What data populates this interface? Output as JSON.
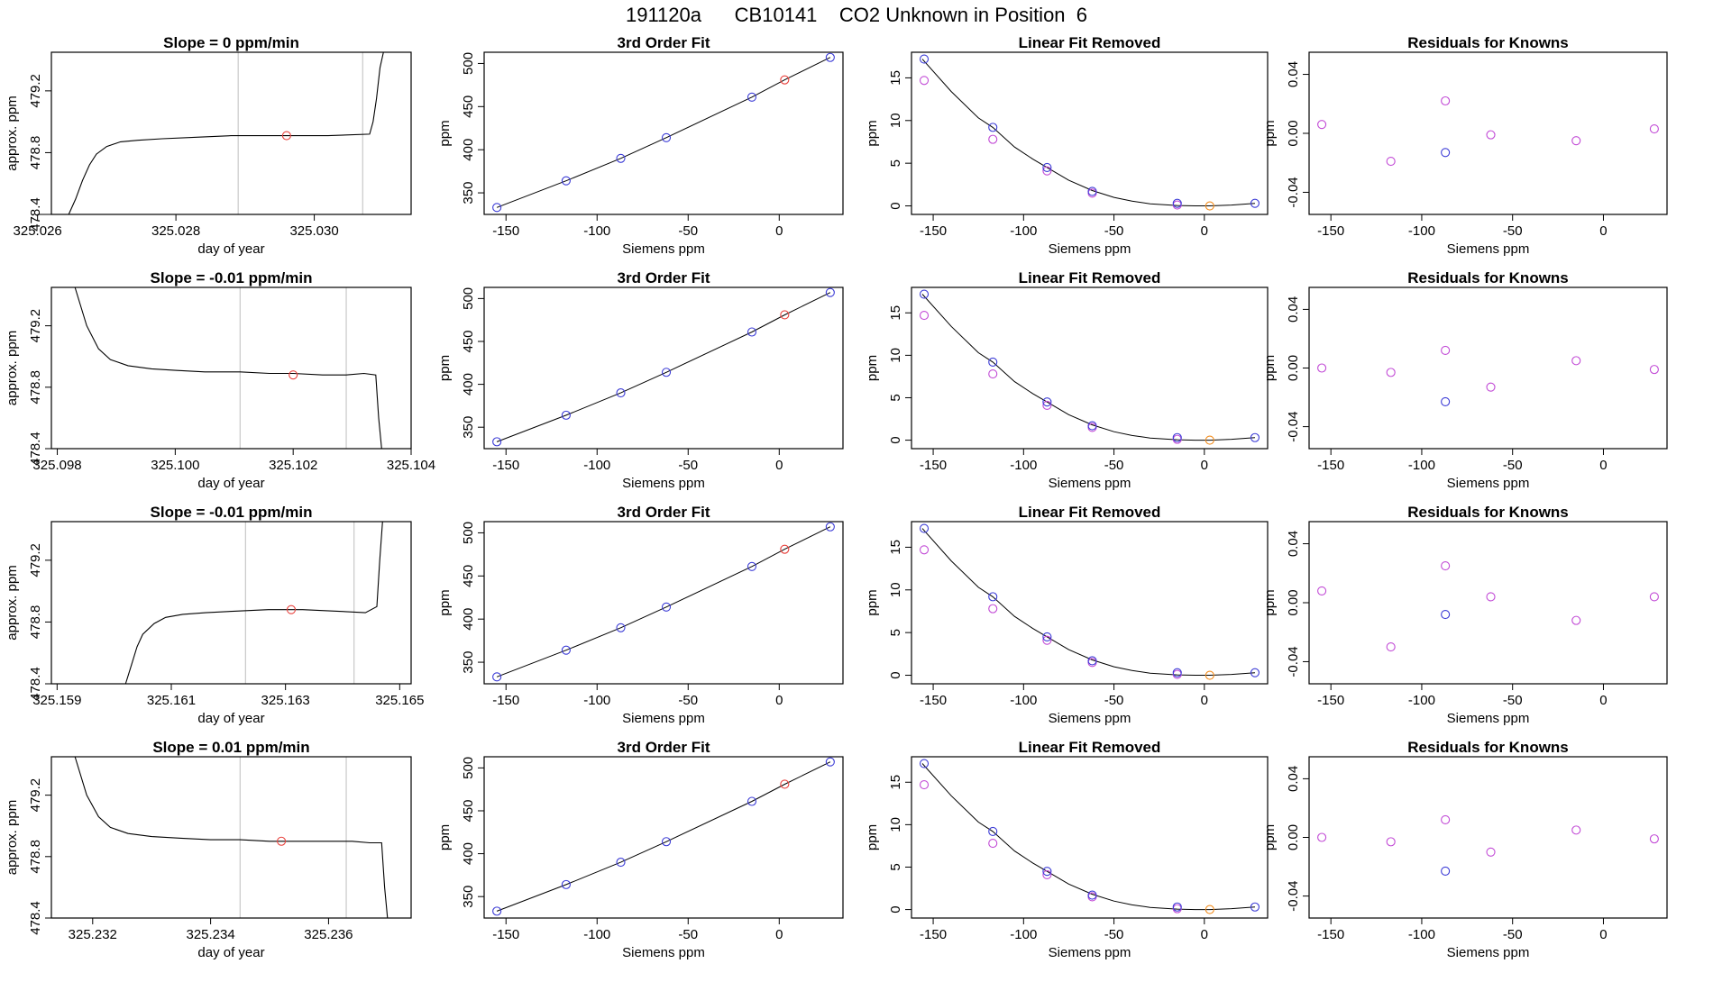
{
  "title": "191120a      CB10141    CO2 Unknown in Position  6",
  "chart_data": [
    {
      "type": "line",
      "row": 0,
      "panel": "time_series",
      "title": "Slope =  0  ppm/min",
      "xlabel": "day of year",
      "ylabel": "approx. ppm",
      "xlim": [
        325.0262,
        325.0314
      ],
      "ylim": [
        478.4,
        479.45
      ],
      "xticks": [
        325.026,
        325.028,
        325.03
      ],
      "xtick_labels": [
        "325.026",
        "325.028",
        "325.030"
      ],
      "yticks": [
        478.4,
        478.8,
        479.2
      ],
      "ytick_labels": [
        "478.4",
        "478.8",
        "479.2"
      ],
      "vlines": [
        325.0289,
        325.0307
      ],
      "marker": {
        "x": 325.0296,
        "y": 478.91,
        "color": "#e8413c"
      },
      "series": [
        {
          "name": "trace",
          "x": [
            325.02645,
            325.02655,
            325.02665,
            325.02675,
            325.02685,
            325.027,
            325.0272,
            325.02745,
            325.0278,
            325.0283,
            325.0288,
            325.0295,
            325.0302,
            325.0308,
            325.03085,
            325.0309,
            325.03095,
            325.031
          ],
          "values": [
            478.4,
            478.5,
            478.62,
            478.72,
            478.79,
            478.84,
            478.87,
            478.88,
            478.89,
            478.9,
            478.91,
            478.91,
            478.91,
            478.92,
            479.0,
            479.15,
            479.35,
            479.45
          ]
        }
      ]
    },
    {
      "type": "line",
      "row": 0,
      "panel": "third_order_fit",
      "title": "3rd Order Fit",
      "xlabel": "Siemens ppm",
      "ylabel": "ppm"
    },
    {
      "type": "line",
      "row": 0,
      "panel": "linear_fit_removed",
      "title": "Linear Fit Removed",
      "xlabel": "Siemens ppm",
      "ylabel": "ppm"
    },
    {
      "type": "scatter",
      "row": 0,
      "panel": "residuals",
      "title": "Residuals for Knowns",
      "xlabel": "Siemens ppm",
      "ylabel": "ppm",
      "magenta_values": [
        0.006,
        -0.019,
        0.022,
        -0.001,
        -0.005,
        0.003
      ],
      "blue_value": -0.013
    },
    {
      "type": "line",
      "row": 1,
      "panel": "time_series",
      "title": "Slope =  -0.01  ppm/min",
      "xlabel": "day of year",
      "ylabel": "approx. ppm",
      "xlim": [
        325.0979,
        325.104
      ],
      "ylim": [
        478.4,
        479.45
      ],
      "xticks": [
        325.098,
        325.1,
        325.102,
        325.104
      ],
      "xtick_labels": [
        "325.098",
        "325.100",
        "325.102",
        "325.104"
      ],
      "yticks": [
        478.4,
        478.8,
        479.2
      ],
      "ytick_labels": [
        "478.4",
        "478.8",
        "479.2"
      ],
      "vlines": [
        325.1011,
        325.1029
      ],
      "marker": {
        "x": 325.102,
        "y": 478.88,
        "color": "#e8413c"
      },
      "series": [
        {
          "name": "trace",
          "x": [
            325.0983,
            325.0985,
            325.0987,
            325.0989,
            325.0992,
            325.0996,
            325.1,
            325.1005,
            325.1011,
            325.1016,
            325.102,
            325.1025,
            325.1029,
            325.1032,
            325.1034,
            325.10345,
            325.1035
          ],
          "values": [
            479.45,
            479.2,
            479.05,
            478.98,
            478.94,
            478.92,
            478.91,
            478.9,
            478.9,
            478.89,
            478.89,
            478.88,
            478.88,
            478.89,
            478.88,
            478.6,
            478.4
          ]
        }
      ]
    },
    {
      "type": "line",
      "row": 1,
      "panel": "third_order_fit",
      "title": "3rd Order Fit",
      "xlabel": "Siemens ppm",
      "ylabel": "ppm"
    },
    {
      "type": "line",
      "row": 1,
      "panel": "linear_fit_removed",
      "title": "Linear Fit Removed",
      "xlabel": "Siemens ppm",
      "ylabel": "ppm"
    },
    {
      "type": "scatter",
      "row": 1,
      "panel": "residuals",
      "title": "Residuals for Knowns",
      "xlabel": "Siemens ppm",
      "ylabel": "ppm",
      "magenta_values": [
        0.0,
        -0.003,
        0.012,
        -0.013,
        0.005,
        -0.001
      ],
      "blue_value": -0.023
    },
    {
      "type": "line",
      "row": 2,
      "panel": "time_series",
      "title": "Slope =  -0.01  ppm/min",
      "xlabel": "day of year",
      "ylabel": "approx. ppm",
      "xlim": [
        325.1589,
        325.1652
      ],
      "ylim": [
        478.4,
        479.45
      ],
      "xticks": [
        325.159,
        325.161,
        325.163,
        325.165
      ],
      "xtick_labels": [
        "325.159",
        "325.161",
        "325.163",
        "325.165"
      ],
      "yticks": [
        478.4,
        478.8,
        479.2
      ],
      "ytick_labels": [
        "478.4",
        "478.8",
        "479.2"
      ],
      "vlines": [
        325.1623,
        325.1642
      ],
      "marker": {
        "x": 325.1631,
        "y": 478.88,
        "color": "#e8413c"
      },
      "series": [
        {
          "name": "trace",
          "x": [
            325.1602,
            325.1603,
            325.1604,
            325.1605,
            325.1607,
            325.1609,
            325.1612,
            325.1616,
            325.1621,
            325.1627,
            325.1633,
            325.1639,
            325.1644,
            325.1646,
            325.16465,
            325.1647
          ],
          "values": [
            478.4,
            478.52,
            478.64,
            478.72,
            478.79,
            478.83,
            478.85,
            478.86,
            478.87,
            478.88,
            478.88,
            478.87,
            478.86,
            478.9,
            479.2,
            479.45
          ]
        }
      ]
    },
    {
      "type": "line",
      "row": 2,
      "panel": "third_order_fit",
      "title": "3rd Order Fit",
      "xlabel": "Siemens ppm",
      "ylabel": "ppm"
    },
    {
      "type": "line",
      "row": 2,
      "panel": "linear_fit_removed",
      "title": "Linear Fit Removed",
      "xlabel": "Siemens ppm",
      "ylabel": "ppm"
    },
    {
      "type": "scatter",
      "row": 2,
      "panel": "residuals",
      "title": "Residuals for Knowns",
      "xlabel": "Siemens ppm",
      "ylabel": "ppm",
      "magenta_values": [
        0.008,
        -0.03,
        0.025,
        0.004,
        -0.012,
        0.004
      ],
      "blue_value": -0.008
    },
    {
      "type": "line",
      "row": 3,
      "panel": "time_series",
      "title": "Slope =  0.01  ppm/min",
      "xlabel": "day of year",
      "ylabel": "approx. ppm",
      "xlim": [
        325.2313,
        325.2374
      ],
      "ylim": [
        478.4,
        479.45
      ],
      "xticks": [
        325.232,
        325.234,
        325.236
      ],
      "xtick_labels": [
        "325.232",
        "325.234",
        "325.236"
      ],
      "yticks": [
        478.4,
        478.8,
        479.2
      ],
      "ytick_labels": [
        "478.4",
        "478.8",
        "479.2"
      ],
      "vlines": [
        325.2345,
        325.2363
      ],
      "marker": {
        "x": 325.2352,
        "y": 478.9,
        "color": "#e8413c"
      },
      "series": [
        {
          "name": "trace",
          "x": [
            325.2317,
            325.2319,
            325.2321,
            325.2323,
            325.2326,
            325.233,
            325.2335,
            325.234,
            325.2345,
            325.235,
            325.2355,
            325.236,
            325.2364,
            325.2367,
            325.2369,
            325.23695,
            325.237
          ],
          "values": [
            479.45,
            479.2,
            479.06,
            478.99,
            478.95,
            478.93,
            478.92,
            478.91,
            478.91,
            478.9,
            478.9,
            478.9,
            478.9,
            478.89,
            478.89,
            478.6,
            478.4
          ]
        }
      ]
    },
    {
      "type": "line",
      "row": 3,
      "panel": "third_order_fit",
      "title": "3rd Order Fit",
      "xlabel": "Siemens ppm",
      "ylabel": "ppm"
    },
    {
      "type": "line",
      "row": 3,
      "panel": "linear_fit_removed",
      "title": "Linear Fit Removed",
      "xlabel": "Siemens ppm",
      "ylabel": "ppm"
    },
    {
      "type": "scatter",
      "row": 3,
      "panel": "residuals",
      "title": "Residuals for Knowns",
      "xlabel": "Siemens ppm",
      "ylabel": "ppm",
      "magenta_values": [
        0.0,
        -0.003,
        0.012,
        -0.01,
        0.005,
        -0.001
      ],
      "blue_value": -0.023
    }
  ],
  "shared": {
    "siemens_x": [
      -155,
      -117,
      -87,
      -62,
      -15,
      3,
      28
    ],
    "siemens_xlim": [
      -162,
      35
    ],
    "siemens_xticks": [
      -150,
      -100,
      -50,
      0
    ],
    "siemens_xtick_labels": [
      "-150",
      "-100",
      "-50",
      "0"
    ],
    "fit_values": [
      333,
      364,
      390,
      414,
      461,
      481,
      507
    ],
    "fit_ylim": [
      325,
      513
    ],
    "fit_yticks": [
      350,
      400,
      450,
      500
    ],
    "fit_ytick_labels": [
      "350",
      "400",
      "450",
      "500"
    ],
    "fit_unknown_index": 5,
    "lin_values_blue": [
      17.2,
      9.2,
      4.5,
      1.7,
      0.3,
      0.0,
      0.3
    ],
    "lin_values_magenta": [
      14.7,
      7.8,
      4.1,
      1.5,
      0.1
    ],
    "lin_ylim": [
      -1,
      18
    ],
    "lin_yticks": [
      0,
      5,
      10,
      15
    ],
    "lin_ytick_labels": [
      "0",
      "5",
      "10",
      "15"
    ],
    "lin_curve": [
      [
        -156,
        17.2
      ],
      [
        -140,
        13.4
      ],
      [
        -125,
        10.3
      ],
      [
        -117,
        9.2
      ],
      [
        -105,
        6.9
      ],
      [
        -95,
        5.5
      ],
      [
        -87,
        4.5
      ],
      [
        -75,
        3.0
      ],
      [
        -62,
        1.8
      ],
      [
        -50,
        1.0
      ],
      [
        -40,
        0.55
      ],
      [
        -30,
        0.25
      ],
      [
        -15,
        0.05
      ],
      [
        -5,
        0.0
      ],
      [
        3,
        0.0
      ],
      [
        15,
        0.1
      ],
      [
        28,
        0.3
      ]
    ],
    "res_ylim": [
      -0.055,
      0.055
    ],
    "res_yticks": [
      -0.04,
      0.0,
      0.04
    ],
    "res_ytick_labels": [
      "-0.04",
      "0.00",
      "0.04"
    ],
    "res_blue_index": 2,
    "colors": {
      "blue": "#3b3bd6",
      "red": "#e8413c",
      "magenta": "#c24bd6",
      "orange": "#f28b1a",
      "axis": "#000000",
      "vline": "#c8c8c8"
    }
  }
}
